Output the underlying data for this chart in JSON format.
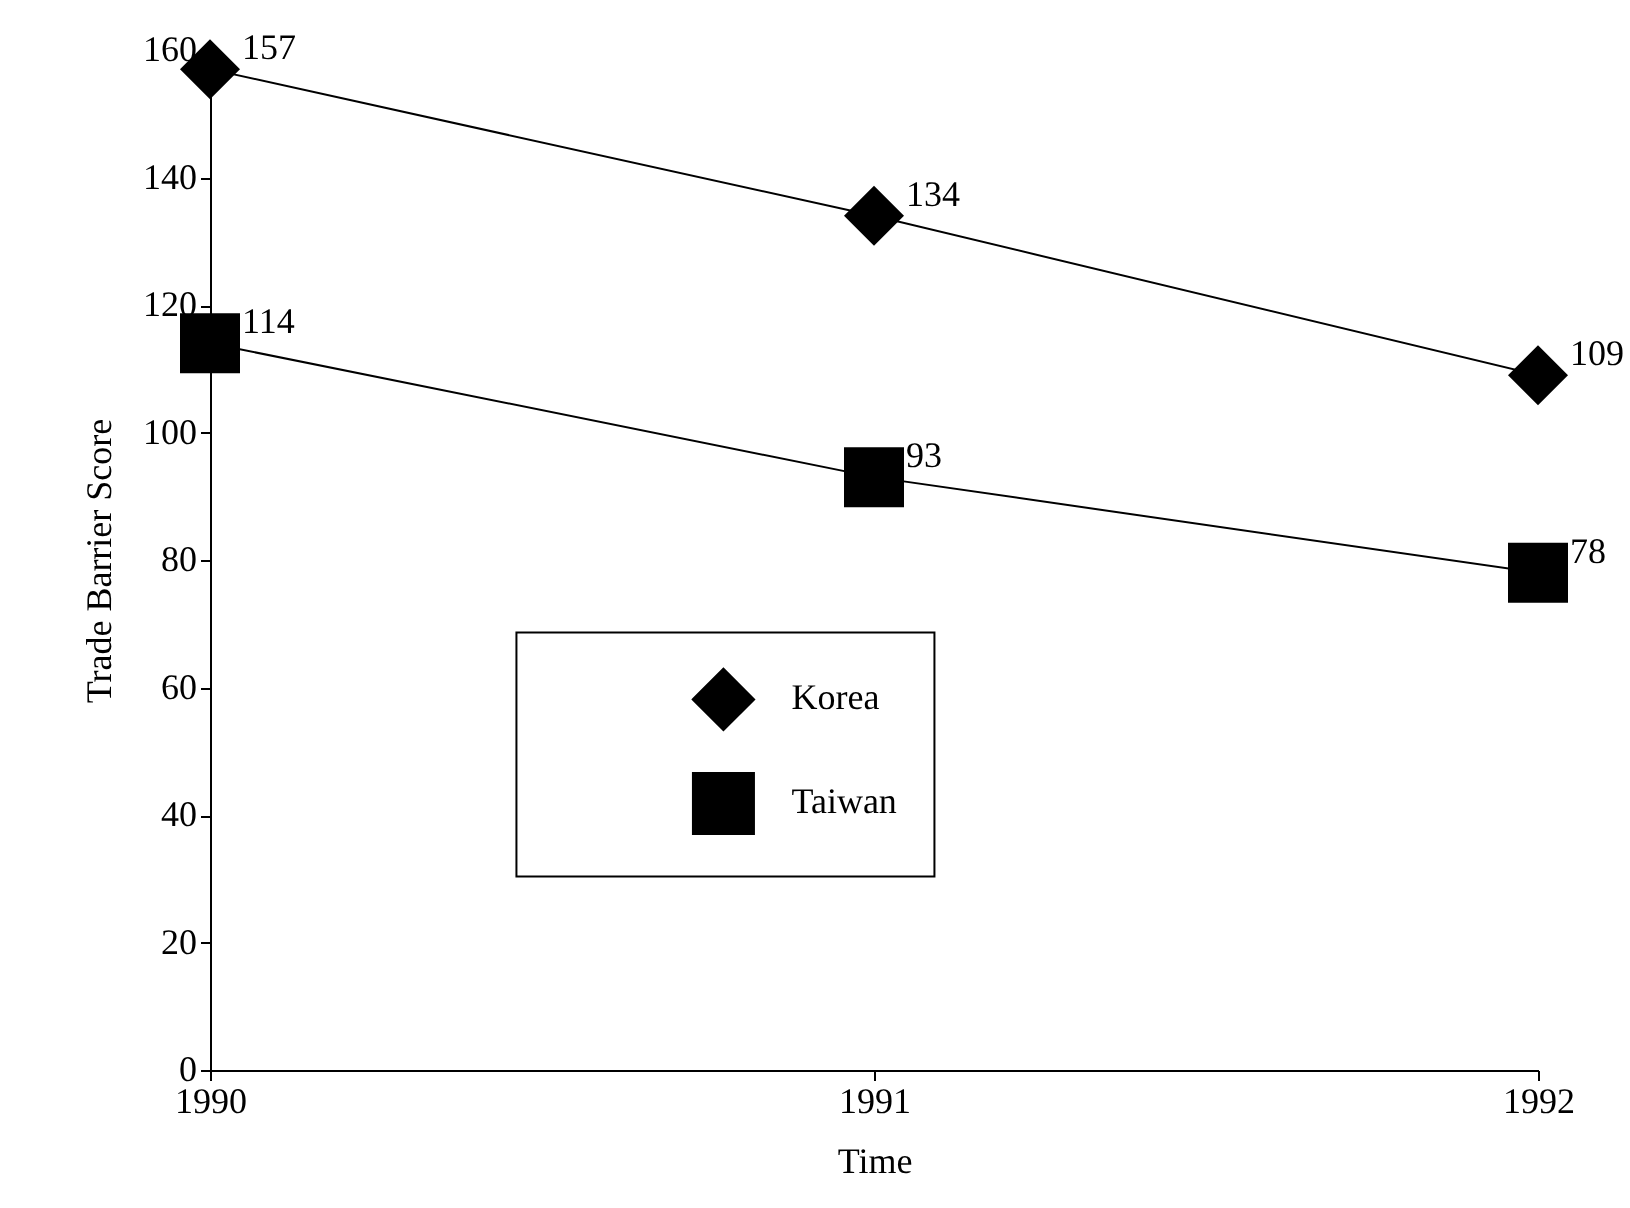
{
  "chart_data": {
    "type": "line",
    "xlabel": "Time",
    "ylabel": "Trade Barrier Score",
    "x": [
      "1990",
      "1991",
      "1992"
    ],
    "series": [
      {
        "name": "Korea",
        "color": "#000000",
        "marker": "diamond",
        "values": [
          157,
          134,
          109
        ]
      },
      {
        "name": "Taiwan",
        "color": "#000000",
        "marker": "square",
        "values": [
          114,
          93,
          78
        ]
      }
    ],
    "xlim": [
      "1990",
      "1992"
    ],
    "xticks": [
      "1990",
      "1991",
      "1992"
    ],
    "ylim": [
      0,
      160
    ],
    "yticks": [
      0,
      20,
      40,
      60,
      80,
      100,
      120,
      140,
      160
    ],
    "grid": false,
    "legend": "bottom",
    "data_labels": true
  }
}
